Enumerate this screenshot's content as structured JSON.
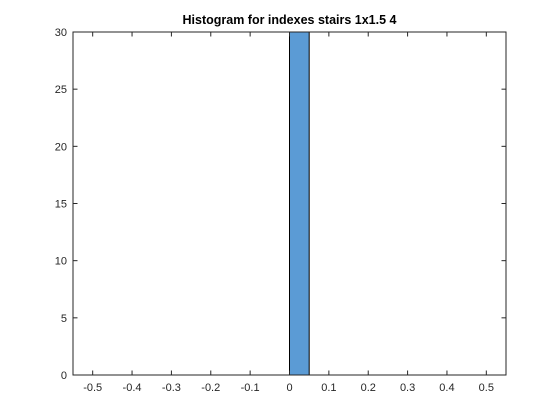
{
  "chart_data": {
    "type": "bar",
    "title": "Histogram for indexes stairs 1x1.5 4",
    "xlabel": "",
    "ylabel": "",
    "xlim": [
      -0.55,
      0.55
    ],
    "ylim": [
      0,
      30
    ],
    "xticks": [
      -0.5,
      -0.4,
      -0.3,
      -0.2,
      -0.1,
      0,
      0.1,
      0.2,
      0.3,
      0.4,
      0.5
    ],
    "xtick_labels": [
      "-0.5",
      "-0.4",
      "-0.3",
      "-0.2",
      "-0.1",
      "0",
      "0.1",
      "0.2",
      "0.3",
      "0.4",
      "0.5"
    ],
    "yticks": [
      0,
      5,
      10,
      15,
      20,
      25,
      30
    ],
    "ytick_labels": [
      "0",
      "5",
      "10",
      "15",
      "20",
      "25",
      "30"
    ],
    "bins": [
      {
        "from": 0,
        "to": 0.05,
        "count": 30
      }
    ],
    "grid": false,
    "colors": {
      "bar_fill": "#5b9bd5",
      "bar_edge": "#000000",
      "axes": "#262626"
    }
  }
}
